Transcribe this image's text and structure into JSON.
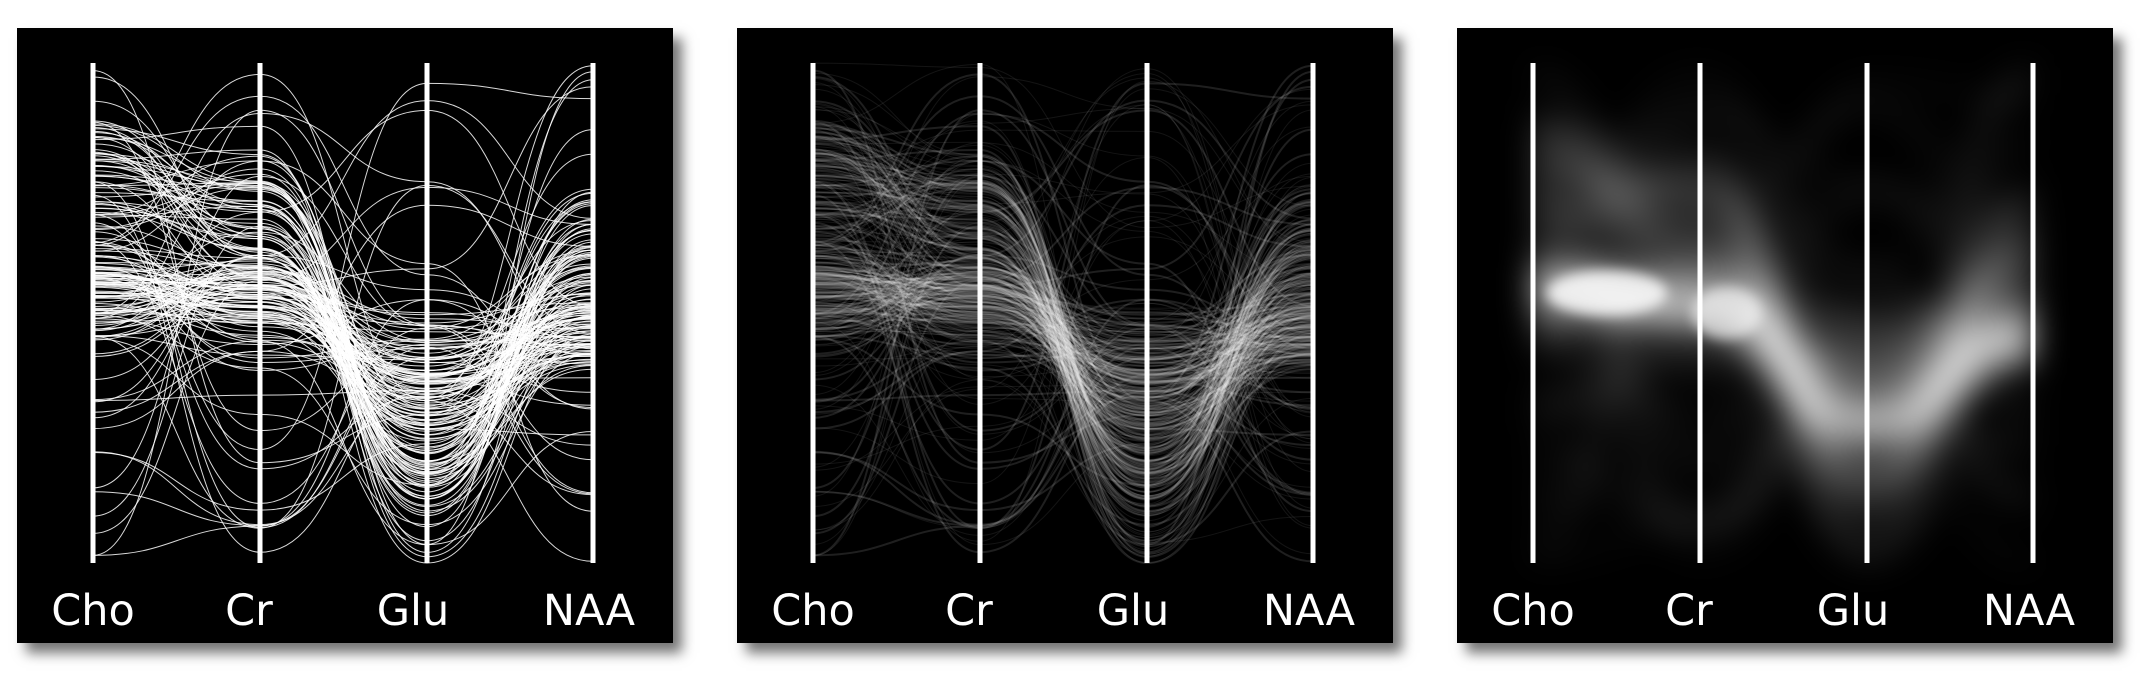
{
  "chart_data": [
    {
      "type": "parallel-coordinates",
      "rendering": "individual curved polylines",
      "axes": [
        "Cho",
        "Cr",
        "Glu",
        "NAA"
      ],
      "line_color": "#ffffff",
      "background": "#000000"
    },
    {
      "type": "parallel-coordinates",
      "rendering": "density (semi-transparent curves)",
      "axes": [
        "Cho",
        "Cr",
        "Glu",
        "NAA"
      ],
      "line_color": "#ffffff",
      "background": "#000000"
    },
    {
      "type": "parallel-coordinates",
      "rendering": "smoothed density heat map",
      "axes": [
        "Cho",
        "Cr",
        "Glu",
        "NAA"
      ],
      "line_color": "#ffffff",
      "background": "#000000"
    }
  ]
}
